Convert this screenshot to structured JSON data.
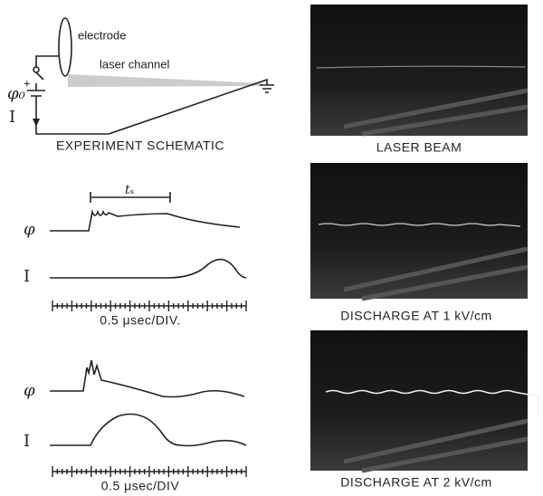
{
  "schematic": {
    "electrode": "electrode",
    "laser_channel": "laser channel",
    "potential": "φ₀",
    "polarity": "+",
    "current": "I",
    "title": "EXPERIMENT SCHEMATIC"
  },
  "photos": [
    {
      "caption": "LASER BEAM"
    },
    {
      "caption": "DISCHARGE AT 1 kV/cm"
    },
    {
      "caption": "DISCHARGE AT 2 kV/cm"
    }
  ],
  "waveforms": [
    {
      "interval": "tₛ",
      "potential": "φ",
      "current": "I",
      "scale": "0.5 μsec/DIV."
    },
    {
      "potential": "φ",
      "current": "I",
      "scale": "0.5 μsec/DIV"
    }
  ]
}
